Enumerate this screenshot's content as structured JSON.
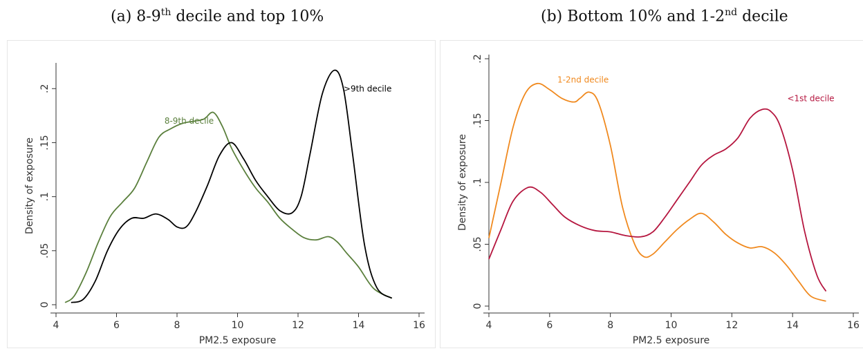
{
  "captions": {
    "a": {
      "prefix": "(a) 8-9",
      "sup": "th",
      "suffix": " decile and top 10%"
    },
    "b": {
      "prefix": "(b) Bottom 10% and 1-2",
      "sup": "nd",
      "suffix": " decile"
    }
  },
  "chart_data": [
    {
      "type": "line",
      "xlabel": "PM2.5 exposure",
      "ylabel": "Density of exposure",
      "xlim": [
        4,
        16
      ],
      "ylim": [
        0,
        0.22
      ],
      "xticks": [
        4,
        6,
        8,
        10,
        12,
        14,
        16
      ],
      "yticks": [
        0,
        0.05,
        0.1,
        0.15,
        0.2
      ],
      "ytick_labels": [
        "0",
        ".05",
        ".1",
        ".15",
        ".2"
      ],
      "grid": false,
      "series": [
        {
          "name": "8-9th decile",
          "color": "#5a7f3c",
          "x": [
            4.3,
            4.6,
            5.0,
            5.4,
            5.8,
            6.2,
            6.6,
            7.0,
            7.4,
            7.8,
            8.2,
            8.6,
            8.9,
            9.2,
            9.5,
            9.8,
            10.2,
            10.6,
            11.0,
            11.4,
            11.8,
            12.2,
            12.6,
            13.0,
            13.3,
            13.6,
            14.0,
            14.5,
            15.1
          ],
          "y": [
            0.002,
            0.008,
            0.03,
            0.058,
            0.082,
            0.095,
            0.108,
            0.132,
            0.155,
            0.163,
            0.168,
            0.17,
            0.172,
            0.178,
            0.165,
            0.145,
            0.125,
            0.108,
            0.095,
            0.08,
            0.07,
            0.062,
            0.06,
            0.063,
            0.058,
            0.048,
            0.035,
            0.015,
            0.006
          ]
        },
        {
          "name": ">9th decile",
          "color": "#000000",
          "x": [
            4.5,
            4.9,
            5.3,
            5.7,
            6.1,
            6.5,
            6.9,
            7.3,
            7.7,
            8.0,
            8.3,
            8.6,
            9.0,
            9.4,
            9.8,
            10.2,
            10.6,
            11.0,
            11.4,
            11.8,
            12.1,
            12.4,
            12.8,
            13.2,
            13.5,
            13.8,
            14.2,
            14.6,
            15.1
          ],
          "y": [
            0.002,
            0.005,
            0.022,
            0.05,
            0.07,
            0.08,
            0.08,
            0.084,
            0.079,
            0.072,
            0.072,
            0.085,
            0.11,
            0.138,
            0.15,
            0.135,
            0.115,
            0.1,
            0.087,
            0.085,
            0.1,
            0.14,
            0.195,
            0.217,
            0.2,
            0.14,
            0.055,
            0.016,
            0.006
          ]
        }
      ],
      "annotations": [
        {
          "text": "8-9th decile",
          "x": 8.4,
          "y": 0.17,
          "color": "#5a7f3c"
        },
        {
          "text": ">9th decile",
          "x": 14.3,
          "y": 0.2,
          "color": "#000000"
        }
      ]
    },
    {
      "type": "line",
      "xlabel": "PM2.5 exposure",
      "ylabel": "Density of exposure",
      "xlim": [
        4,
        16
      ],
      "ylim": [
        0,
        0.2
      ],
      "xticks": [
        4,
        6,
        8,
        10,
        12,
        14,
        16
      ],
      "yticks": [
        0,
        0.05,
        0.1,
        0.15,
        0.2
      ],
      "ytick_labels": [
        "0",
        ".05",
        ".1",
        ".15",
        ".2"
      ],
      "grid": false,
      "series": [
        {
          "name": "1-2nd decile",
          "color": "#f0891e",
          "x": [
            4.0,
            4.4,
            4.8,
            5.2,
            5.6,
            6.0,
            6.4,
            6.8,
            7.0,
            7.3,
            7.6,
            8.0,
            8.4,
            8.8,
            9.1,
            9.4,
            9.8,
            10.2,
            10.6,
            11.0,
            11.4,
            11.8,
            12.2,
            12.6,
            13.0,
            13.4,
            13.8,
            14.2,
            14.6,
            15.1
          ],
          "y": [
            0.055,
            0.1,
            0.145,
            0.172,
            0.18,
            0.175,
            0.168,
            0.165,
            0.168,
            0.173,
            0.165,
            0.13,
            0.08,
            0.05,
            0.04,
            0.042,
            0.052,
            0.062,
            0.07,
            0.075,
            0.068,
            0.058,
            0.051,
            0.047,
            0.048,
            0.043,
            0.033,
            0.02,
            0.008,
            0.004
          ]
        },
        {
          "name": "<1st decile",
          "color": "#b5163f",
          "x": [
            4.0,
            4.4,
            4.8,
            5.3,
            5.7,
            6.1,
            6.5,
            7.0,
            7.5,
            8.0,
            8.5,
            9.0,
            9.4,
            9.8,
            10.2,
            10.6,
            11.0,
            11.4,
            11.8,
            12.2,
            12.6,
            13.0,
            13.3,
            13.6,
            14.0,
            14.4,
            14.8,
            15.1
          ],
          "y": [
            0.038,
            0.062,
            0.085,
            0.096,
            0.092,
            0.082,
            0.072,
            0.065,
            0.061,
            0.06,
            0.057,
            0.056,
            0.06,
            0.072,
            0.086,
            0.1,
            0.114,
            0.122,
            0.127,
            0.136,
            0.152,
            0.159,
            0.157,
            0.145,
            0.11,
            0.06,
            0.025,
            0.012
          ]
        }
      ],
      "annotations": [
        {
          "text": "1-2nd decile",
          "x": 7.1,
          "y": 0.183,
          "color": "#f0891e"
        },
        {
          "text": "<1st decile",
          "x": 14.6,
          "y": 0.168,
          "color": "#b5163f"
        }
      ]
    }
  ]
}
